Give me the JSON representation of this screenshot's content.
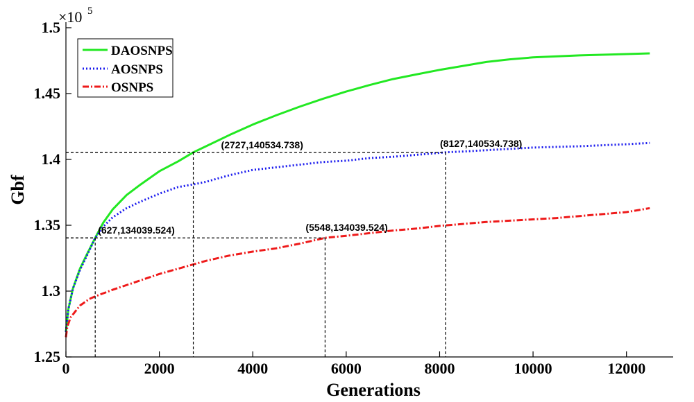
{
  "chart_data": {
    "type": "line",
    "title": "",
    "xlabel": "Generations",
    "ylabel": "Gbf",
    "xlim": [
      0,
      13000
    ],
    "ylim": [
      125000,
      150000
    ],
    "y_exponent_label": "×10",
    "y_exponent_power": "5",
    "xticks": [
      0,
      2000,
      4000,
      6000,
      8000,
      10000,
      12000
    ],
    "xtick_labels": [
      "0",
      "2000",
      "4000",
      "6000",
      "8000",
      "10000",
      "12000"
    ],
    "yticks": [
      125000,
      130000,
      135000,
      140000,
      145000,
      150000
    ],
    "ytick_labels": [
      "1.25",
      "1.3",
      "1.35",
      "1.4",
      "1.45",
      "1.5"
    ],
    "grid": false,
    "legend_position": "top-left",
    "series": [
      {
        "name": "DAOSNPS",
        "color": "#22e822",
        "style": "solid",
        "x": [
          0,
          50,
          150,
          300,
          450,
          627,
          800,
          1000,
          1300,
          1600,
          2000,
          2400,
          2727,
          3000,
          3500,
          4000,
          4500,
          5000,
          5500,
          6000,
          6500,
          7000,
          7500,
          8000,
          8500,
          9000,
          9500,
          10000,
          11000,
          12000,
          12500
        ],
        "y": [
          126900,
          128600,
          130200,
          131700,
          132800,
          134040,
          135200,
          136200,
          137300,
          138100,
          139100,
          139850,
          140535,
          141000,
          141850,
          142650,
          143350,
          144000,
          144600,
          145150,
          145650,
          146100,
          146450,
          146800,
          147100,
          147400,
          147600,
          147750,
          147900,
          148000,
          148050
        ]
      },
      {
        "name": "AOSNPS",
        "color": "#1a1aee",
        "style": "dotted",
        "x": [
          0,
          50,
          150,
          300,
          450,
          627,
          800,
          1000,
          1300,
          1600,
          2000,
          2400,
          2727,
          3000,
          3500,
          4000,
          4500,
          5000,
          5500,
          6000,
          6500,
          7000,
          7500,
          8127,
          8500,
          9000,
          9500,
          10000,
          11000,
          12000,
          12500
        ],
        "y": [
          126900,
          128600,
          130200,
          131600,
          132700,
          134040,
          134900,
          135600,
          136300,
          136800,
          137400,
          137900,
          138100,
          138300,
          138800,
          139200,
          139400,
          139600,
          139800,
          139900,
          140100,
          140200,
          140350,
          140535,
          140600,
          140700,
          140800,
          140900,
          141000,
          141150,
          141250
        ]
      },
      {
        "name": "OSNPS",
        "color": "#ee1a1a",
        "style": "dashed",
        "x": [
          0,
          30,
          100,
          300,
          500,
          627,
          1000,
          1500,
          2000,
          2500,
          3000,
          3500,
          4000,
          4500,
          5000,
          5548,
          6000,
          6500,
          7000,
          7500,
          8000,
          8500,
          9000,
          9500,
          10000,
          10500,
          11000,
          11500,
          12000,
          12500
        ],
        "y": [
          126500,
          127300,
          128000,
          128900,
          129400,
          129600,
          130100,
          130700,
          131300,
          131800,
          132300,
          132700,
          133000,
          133250,
          133600,
          134040,
          134200,
          134400,
          134600,
          134750,
          134950,
          135100,
          135250,
          135350,
          135450,
          135550,
          135700,
          135850,
          136000,
          136300
        ]
      }
    ],
    "annotations": [
      {
        "x": 627,
        "y": 134039.524,
        "label": "(627,134039.524)"
      },
      {
        "x": 2727,
        "y": 140534.738,
        "label": "(2727,140534.738)"
      },
      {
        "x": 5548,
        "y": 134039.524,
        "label": "(5548,134039.524)"
      },
      {
        "x": 8127,
        "y": 140534.738,
        "label": "(8127,140534.738)"
      }
    ]
  }
}
